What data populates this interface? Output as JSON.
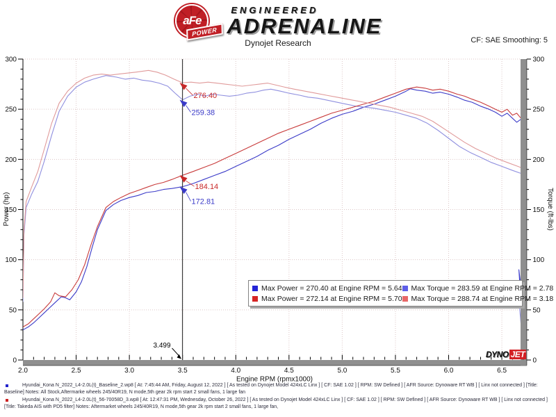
{
  "header": {
    "brand": {
      "circle_text": "aFe",
      "banner_text": "POWER",
      "tagline_top": "ENGINEERED",
      "tagline_main": "ADRENALINE",
      "brand_red": "#c01f26"
    },
    "subtitle": "Dynojet Research",
    "cf_label": "CF: SAE Smoothing: 5"
  },
  "chart_data": {
    "type": "line",
    "xlabel": "Engine RPM (rpmx1000)",
    "ylabel_left": "Power (hp)",
    "ylabel_right": "Torque (ft-lbs)",
    "xlim": [
      2.0,
      6.73
    ],
    "ylim": [
      0,
      300
    ],
    "x_ticks": [
      2.0,
      2.5,
      3.0,
      3.5,
      4.0,
      4.5,
      5.0,
      5.5,
      6.0,
      6.5
    ],
    "y_ticks": [
      0,
      50,
      100,
      150,
      200,
      250,
      300
    ],
    "grid": true,
    "grid_color": "#dcc6c6",
    "band_color": "#8f8f8f",
    "cursor_rpm": 3.499,
    "cursor_label": "3.499",
    "series": [
      {
        "name": "baseline-power",
        "color": "#3a3ac8",
        "points": [
          [
            2.0,
            30
          ],
          [
            2.05,
            33
          ],
          [
            2.1,
            37
          ],
          [
            2.15,
            42
          ],
          [
            2.2,
            47
          ],
          [
            2.25,
            52
          ],
          [
            2.3,
            57
          ],
          [
            2.36,
            63
          ],
          [
            2.4,
            62
          ],
          [
            2.44,
            60
          ],
          [
            2.5,
            68
          ],
          [
            2.55,
            78
          ],
          [
            2.6,
            93
          ],
          [
            2.65,
            112
          ],
          [
            2.7,
            130
          ],
          [
            2.78,
            149
          ],
          [
            2.85,
            155
          ],
          [
            2.92,
            159
          ],
          [
            3.0,
            162
          ],
          [
            3.08,
            164
          ],
          [
            3.16,
            167
          ],
          [
            3.24,
            168
          ],
          [
            3.32,
            170
          ],
          [
            3.4,
            171
          ],
          [
            3.5,
            172.81
          ],
          [
            3.6,
            176
          ],
          [
            3.7,
            180
          ],
          [
            3.8,
            184
          ],
          [
            3.9,
            188
          ],
          [
            4.0,
            193
          ],
          [
            4.1,
            198
          ],
          [
            4.2,
            203
          ],
          [
            4.3,
            209
          ],
          [
            4.4,
            214
          ],
          [
            4.5,
            220
          ],
          [
            4.6,
            225
          ],
          [
            4.7,
            230
          ],
          [
            4.8,
            236
          ],
          [
            4.9,
            241
          ],
          [
            5.0,
            245
          ],
          [
            5.1,
            248
          ],
          [
            5.2,
            252
          ],
          [
            5.3,
            255
          ],
          [
            5.4,
            259
          ],
          [
            5.5,
            263
          ],
          [
            5.6,
            268
          ],
          [
            5.64,
            270.4
          ],
          [
            5.7,
            269
          ],
          [
            5.78,
            268
          ],
          [
            5.85,
            266
          ],
          [
            5.92,
            267
          ],
          [
            6.0,
            265
          ],
          [
            6.08,
            262
          ],
          [
            6.15,
            259
          ],
          [
            6.22,
            257
          ],
          [
            6.3,
            253
          ],
          [
            6.38,
            250
          ],
          [
            6.44,
            247
          ],
          [
            6.5,
            243
          ],
          [
            6.55,
            246
          ],
          [
            6.6,
            241
          ],
          [
            6.64,
            237
          ],
          [
            6.68,
            240
          ],
          [
            6.7,
            236
          ],
          [
            6.705,
            120
          ],
          [
            6.695,
            60
          ],
          [
            6.66,
            90
          ],
          [
            6.71,
            8
          ]
        ]
      },
      {
        "name": "baseline-torque",
        "color": "#8f8fdf",
        "points": [
          [
            2.0,
            58
          ],
          [
            2.01,
            125
          ],
          [
            2.03,
            152
          ],
          [
            2.08,
            165
          ],
          [
            2.14,
            178
          ],
          [
            2.2,
            198
          ],
          [
            2.27,
            224
          ],
          [
            2.34,
            248
          ],
          [
            2.42,
            263
          ],
          [
            2.5,
            272
          ],
          [
            2.58,
            277
          ],
          [
            2.66,
            280
          ],
          [
            2.78,
            283.59
          ],
          [
            2.88,
            282
          ],
          [
            2.96,
            280
          ],
          [
            3.04,
            281
          ],
          [
            3.12,
            279
          ],
          [
            3.2,
            278
          ],
          [
            3.28,
            276
          ],
          [
            3.36,
            273
          ],
          [
            3.43,
            266
          ],
          [
            3.5,
            259.38
          ],
          [
            3.57,
            263
          ],
          [
            3.64,
            265
          ],
          [
            3.71,
            263
          ],
          [
            3.78,
            265
          ],
          [
            3.86,
            264
          ],
          [
            3.94,
            263
          ],
          [
            4.02,
            264
          ],
          [
            4.1,
            266
          ],
          [
            4.18,
            267
          ],
          [
            4.26,
            269
          ],
          [
            4.33,
            270
          ],
          [
            4.42,
            268
          ],
          [
            4.5,
            266
          ],
          [
            4.6,
            264
          ],
          [
            4.68,
            262
          ],
          [
            4.77,
            261
          ],
          [
            4.86,
            259
          ],
          [
            4.95,
            257
          ],
          [
            5.04,
            255
          ],
          [
            5.13,
            253
          ],
          [
            5.22,
            252
          ],
          [
            5.3,
            251
          ],
          [
            5.4,
            249
          ],
          [
            5.5,
            247
          ],
          [
            5.6,
            244
          ],
          [
            5.7,
            241
          ],
          [
            5.8,
            236
          ],
          [
            5.9,
            229
          ],
          [
            6.0,
            221
          ],
          [
            6.1,
            213
          ],
          [
            6.2,
            207
          ],
          [
            6.3,
            202
          ],
          [
            6.4,
            197
          ],
          [
            6.5,
            193
          ],
          [
            6.6,
            189
          ],
          [
            6.68,
            186
          ],
          [
            6.695,
            90
          ],
          [
            6.66,
            60
          ],
          [
            6.705,
            5
          ]
        ]
      },
      {
        "name": "takeda-power",
        "color": "#c83a3a",
        "points": [
          [
            2.0,
            33
          ],
          [
            2.05,
            36
          ],
          [
            2.1,
            41
          ],
          [
            2.15,
            46
          ],
          [
            2.2,
            51
          ],
          [
            2.26,
            58
          ],
          [
            2.3,
            67
          ],
          [
            2.34,
            64
          ],
          [
            2.4,
            63
          ],
          [
            2.46,
            70
          ],
          [
            2.52,
            80
          ],
          [
            2.58,
            95
          ],
          [
            2.64,
            115
          ],
          [
            2.7,
            133
          ],
          [
            2.78,
            152
          ],
          [
            2.85,
            158
          ],
          [
            2.92,
            162
          ],
          [
            3.0,
            166
          ],
          [
            3.08,
            169
          ],
          [
            3.16,
            172
          ],
          [
            3.24,
            175
          ],
          [
            3.32,
            177
          ],
          [
            3.4,
            180
          ],
          [
            3.5,
            184.14
          ],
          [
            3.6,
            188
          ],
          [
            3.7,
            192
          ],
          [
            3.8,
            196
          ],
          [
            3.9,
            201
          ],
          [
            4.0,
            206
          ],
          [
            4.1,
            211
          ],
          [
            4.2,
            216
          ],
          [
            4.3,
            221
          ],
          [
            4.4,
            226
          ],
          [
            4.5,
            230
          ],
          [
            4.6,
            234
          ],
          [
            4.7,
            238
          ],
          [
            4.8,
            242
          ],
          [
            4.9,
            246
          ],
          [
            5.0,
            249
          ],
          [
            5.1,
            252
          ],
          [
            5.2,
            255
          ],
          [
            5.3,
            258
          ],
          [
            5.4,
            262
          ],
          [
            5.5,
            266
          ],
          [
            5.6,
            270
          ],
          [
            5.7,
            272.14
          ],
          [
            5.78,
            271
          ],
          [
            5.85,
            269
          ],
          [
            5.92,
            270
          ],
          [
            6.0,
            268
          ],
          [
            6.08,
            265
          ],
          [
            6.15,
            263
          ],
          [
            6.22,
            260
          ],
          [
            6.3,
            257
          ],
          [
            6.38,
            253
          ],
          [
            6.44,
            250
          ],
          [
            6.5,
            247
          ],
          [
            6.55,
            250
          ],
          [
            6.6,
            244
          ],
          [
            6.64,
            246
          ],
          [
            6.68,
            241
          ],
          [
            6.7,
            243
          ],
          [
            6.705,
            110
          ],
          [
            6.68,
            120
          ],
          [
            6.695,
            60
          ],
          [
            6.71,
            58
          ]
        ]
      },
      {
        "name": "takeda-torque",
        "color": "#e09a9a",
        "points": [
          [
            2.0,
            62
          ],
          [
            2.01,
            130
          ],
          [
            2.03,
            158
          ],
          [
            2.08,
            172
          ],
          [
            2.14,
            188
          ],
          [
            2.2,
            210
          ],
          [
            2.27,
            236
          ],
          [
            2.34,
            256
          ],
          [
            2.42,
            268
          ],
          [
            2.5,
            276
          ],
          [
            2.58,
            281
          ],
          [
            2.66,
            284
          ],
          [
            2.74,
            285
          ],
          [
            2.82,
            284
          ],
          [
            2.9,
            285
          ],
          [
            2.98,
            286
          ],
          [
            3.06,
            287
          ],
          [
            3.18,
            288.74
          ],
          [
            3.26,
            287
          ],
          [
            3.34,
            284
          ],
          [
            3.42,
            280
          ],
          [
            3.5,
            276.4
          ],
          [
            3.58,
            277
          ],
          [
            3.66,
            276
          ],
          [
            3.74,
            277
          ],
          [
            3.82,
            276
          ],
          [
            3.9,
            275
          ],
          [
            3.98,
            274
          ],
          [
            4.06,
            273
          ],
          [
            4.14,
            274
          ],
          [
            4.22,
            275
          ],
          [
            4.3,
            276
          ],
          [
            4.38,
            274
          ],
          [
            4.46,
            272
          ],
          [
            4.55,
            270
          ],
          [
            4.65,
            268
          ],
          [
            4.75,
            266
          ],
          [
            4.85,
            264
          ],
          [
            4.95,
            262
          ],
          [
            5.05,
            260
          ],
          [
            5.15,
            258
          ],
          [
            5.25,
            256
          ],
          [
            5.35,
            254
          ],
          [
            5.45,
            252
          ],
          [
            5.55,
            249
          ],
          [
            5.65,
            246
          ],
          [
            5.75,
            243
          ],
          [
            5.85,
            238
          ],
          [
            5.95,
            231
          ],
          [
            6.05,
            224
          ],
          [
            6.15,
            217
          ],
          [
            6.25,
            211
          ],
          [
            6.35,
            206
          ],
          [
            6.45,
            201
          ],
          [
            6.55,
            197
          ],
          [
            6.65,
            193
          ],
          [
            6.7,
            191
          ],
          [
            6.71,
            100
          ],
          [
            6.68,
            115
          ],
          [
            6.7,
            62
          ],
          [
            6.715,
            56
          ]
        ]
      }
    ],
    "callouts": [
      {
        "text": "276.40",
        "color": "#c82828",
        "rpm": 3.499,
        "value": 276.4,
        "label_offset": [
          16,
          22
        ]
      },
      {
        "text": "259.38",
        "color": "#3a3ac8",
        "rpm": 3.499,
        "value": 259.38,
        "label_offset": [
          13,
          22
        ]
      },
      {
        "text": "184.14",
        "color": "#c82828",
        "rpm": 3.499,
        "value": 184.14,
        "label_offset": [
          18,
          20
        ]
      },
      {
        "text": "172.81",
        "color": "#3a3ac8",
        "rpm": 3.499,
        "value": 172.81,
        "label_offset": [
          13,
          25
        ]
      }
    ]
  },
  "legend": {
    "items": [
      {
        "color": "#2424d6",
        "text": "Max Power = 270.40 at Engine RPM = 5.64"
      },
      {
        "color": "#5f5fe8",
        "text": "Max Torque = 283.59 at Engine RPM = 2.78"
      },
      {
        "color": "#d62424",
        "text": "Max Power = 272.14 at Engine RPM = 5.70"
      },
      {
        "color": "#e86868",
        "text": "Max Torque = 288.74 at Engine RPM = 3.18"
      }
    ]
  },
  "dynojet_logo": {
    "part1": "DYNO",
    "part2": "JET"
  },
  "footnotes": [
    {
      "bullet_color": "#2222cc",
      "text": "Hyundai_Kona N_2022_L4-2.0L(t)_Baseline_2.wp8 [ At: 7:45:44 AM, Friday, August 12, 2022 ] [ As tested on Dynojet Model 424xLC Linx ] [ CF: SAE 1.02 ] [ RPM: SW Defined ] [ AFR Source: Dynoware RT WB ] [ Linx not connected ] [Title: Baseline]  Notes: All Stock,Aftermarke wheels 245/40R19, N mode,5th gear 2k rpm start 2 small fans, 1 large fan"
    },
    {
      "bullet_color": "#cc2222",
      "text": "Hyundai_Kona N_2022_L4-2.0L(t)_56-70058D_3.wp8 [ At: 12:47:31 PM, Wednesday, October 26, 2022 ] [ As tested on Dynojet Model 424xLC Linx ] [ CF: SAE 1.02 ] [ RPM: SW Defined ] [ AFR Source: Dynoware RT WB ] [ Linx not connected ] [Title: Takeda AIS with PD5 filter]  Notes:  Aftermarket wheels 245/40R19, N mode,5th gear 2k rpm start 2 small fans, 1 large fan,"
    }
  ]
}
